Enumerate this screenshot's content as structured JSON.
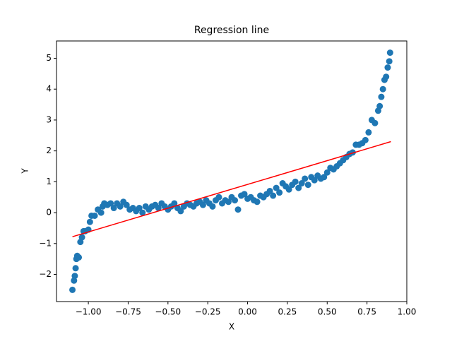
{
  "chart_data": {
    "type": "scatter",
    "title": "Regression line",
    "x_label": "X",
    "y_label": "Y",
    "xlim": [
      -1.2,
      1.0
    ],
    "ylim": [
      -2.88,
      5.56
    ],
    "xticks": [
      {
        "value": -1.0,
        "label": "−1.00"
      },
      {
        "value": -0.75,
        "label": "−0.75"
      },
      {
        "value": -0.5,
        "label": "−0.50"
      },
      {
        "value": -0.25,
        "label": "−0.25"
      },
      {
        "value": 0,
        "label": "0.00"
      },
      {
        "value": 0.25,
        "label": "0.25"
      },
      {
        "value": 0.5,
        "label": "0.50"
      },
      {
        "value": 0.75,
        "label": "0.75"
      },
      {
        "value": 1,
        "label": "1.00"
      }
    ],
    "yticks": [
      {
        "value": -2,
        "label": "−2"
      },
      {
        "value": -1,
        "label": "−1"
      },
      0,
      1,
      2,
      3,
      4,
      5
    ],
    "series": [
      {
        "kind": "scatter",
        "color": "#1f77b4",
        "x": [
          -1.1,
          -1.09,
          -1.085,
          -1.08,
          -1.075,
          -1.07,
          -1.06,
          -1.05,
          -1.04,
          -1.03,
          -1.02,
          -1.0,
          -0.99,
          -0.98,
          -0.96,
          -0.94,
          -0.92,
          -0.91,
          -0.9,
          -0.88,
          -0.86,
          -0.84,
          -0.82,
          -0.8,
          -0.78,
          -0.76,
          -0.74,
          -0.72,
          -0.7,
          -0.68,
          -0.66,
          -0.64,
          -0.62,
          -0.6,
          -0.58,
          -0.56,
          -0.54,
          -0.52,
          -0.5,
          -0.48,
          -0.46,
          -0.44,
          -0.42,
          -0.4,
          -0.38,
          -0.36,
          -0.34,
          -0.32,
          -0.3,
          -0.28,
          -0.26,
          -0.24,
          -0.22,
          -0.2,
          -0.18,
          -0.16,
          -0.14,
          -0.12,
          -0.1,
          -0.08,
          -0.06,
          -0.04,
          -0.02,
          0.0,
          0.02,
          0.04,
          0.06,
          0.08,
          0.1,
          0.12,
          0.14,
          0.16,
          0.18,
          0.2,
          0.22,
          0.24,
          0.26,
          0.28,
          0.3,
          0.32,
          0.34,
          0.36,
          0.38,
          0.4,
          0.42,
          0.44,
          0.46,
          0.48,
          0.5,
          0.52,
          0.54,
          0.56,
          0.58,
          0.6,
          0.62,
          0.64,
          0.66,
          0.68,
          0.7,
          0.72,
          0.74,
          0.76,
          0.78,
          0.8,
          0.82,
          0.83,
          0.84,
          0.85,
          0.86,
          0.87,
          0.88,
          0.89,
          0.895
        ],
        "values": [
          -2.5,
          -2.2,
          -2.05,
          -1.8,
          -1.5,
          -1.4,
          -1.45,
          -0.95,
          -0.8,
          -0.6,
          -0.6,
          -0.55,
          -0.3,
          -0.1,
          -0.1,
          0.1,
          0.0,
          0.2,
          0.3,
          0.25,
          0.3,
          0.15,
          0.3,
          0.2,
          0.35,
          0.25,
          0.1,
          0.15,
          0.05,
          0.15,
          0.0,
          0.2,
          0.1,
          0.2,
          0.25,
          0.15,
          0.3,
          0.2,
          0.1,
          0.2,
          0.3,
          0.15,
          0.05,
          0.2,
          0.3,
          0.25,
          0.2,
          0.3,
          0.35,
          0.25,
          0.4,
          0.3,
          0.2,
          0.4,
          0.5,
          0.3,
          0.4,
          0.35,
          0.5,
          0.4,
          0.1,
          0.55,
          0.6,
          0.45,
          0.5,
          0.4,
          0.35,
          0.55,
          0.5,
          0.6,
          0.7,
          0.55,
          0.8,
          0.65,
          0.95,
          0.85,
          0.75,
          0.9,
          1.0,
          0.8,
          0.95,
          1.1,
          0.9,
          1.15,
          1.05,
          1.2,
          1.1,
          1.15,
          1.3,
          1.45,
          1.4,
          1.5,
          1.6,
          1.7,
          1.8,
          1.9,
          1.95,
          2.2,
          2.2,
          2.25,
          2.35,
          2.6,
          3.0,
          2.9,
          3.3,
          3.45,
          3.75,
          4.0,
          4.3,
          4.4,
          4.7,
          4.9,
          5.18
        ]
      },
      {
        "kind": "line",
        "color": "#ff0000",
        "x": [
          -1.1,
          0.9
        ],
        "values": [
          -0.78,
          2.3
        ]
      }
    ]
  }
}
